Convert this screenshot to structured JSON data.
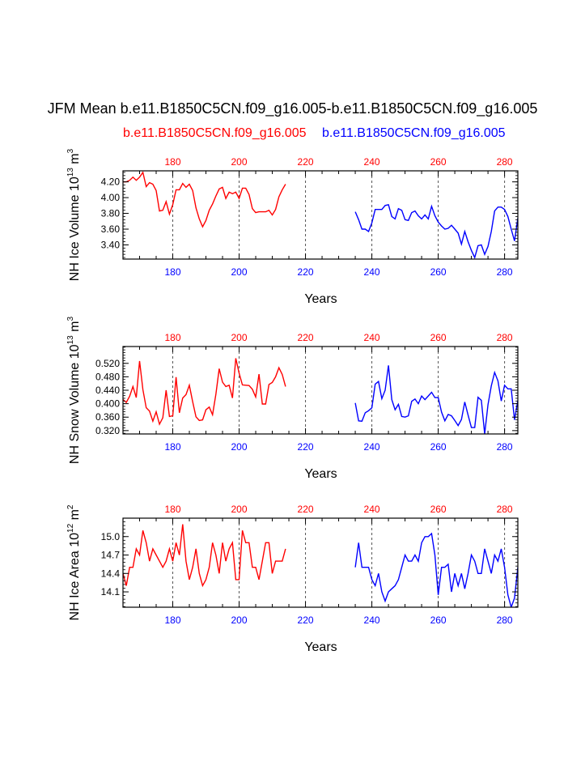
{
  "title": "JFM Mean b.e11.B1850C5CN.f09_g16.005-b.e11.B1850C5CN.f09_g16.005",
  "legend": {
    "red_case": "b.e11.B1850C5CN.f09_g16.005",
    "blue_case": "b.e11.B1850C5CN.f09_g16.005"
  },
  "colors": {
    "red": "#ff0000",
    "blue": "#0000ff",
    "grid": "#555555"
  },
  "chart_data": [
    {
      "type": "line",
      "id": "ice-volume",
      "ylabel_main": "NH Ice Volume 10",
      "ylabel_exp": "13",
      "ylabel_unit": " m",
      "ylabel_unit_exp": "3",
      "xlabel": "Years",
      "xlim": [
        165,
        284
      ],
      "ylim": [
        3.22,
        4.34
      ],
      "yticks": [
        3.4,
        3.6,
        3.8,
        4.0,
        4.2
      ],
      "ytick_labels": [
        "3.40",
        "3.60",
        "3.80",
        "4.00",
        "4.20"
      ],
      "top_xticks": [
        180,
        200,
        220,
        240,
        260,
        280
      ],
      "bottom_xticks": [
        180,
        200,
        220,
        240,
        260,
        280
      ],
      "grid_x": [
        180,
        200,
        220,
        240,
        260,
        280
      ],
      "series": [
        {
          "name": "b.e11.B1850C5CN.f09_g16.005",
          "color": "red",
          "x_start": 165,
          "values": [
            4.2,
            4.2,
            4.22,
            4.26,
            4.22,
            4.26,
            4.32,
            4.14,
            4.19,
            4.17,
            4.09,
            3.83,
            3.84,
            3.95,
            3.79,
            3.91,
            4.1,
            4.1,
            4.18,
            4.13,
            4.17,
            4.09,
            3.87,
            3.73,
            3.63,
            3.71,
            3.84,
            3.92,
            4.02,
            4.11,
            4.13,
            3.99,
            4.07,
            4.05,
            4.07,
            3.99,
            4.12,
            4.12,
            4.04,
            3.86,
            3.81,
            3.82,
            3.82,
            3.82,
            3.84,
            3.78,
            3.85,
            4.01,
            4.1,
            4.17
          ]
        },
        {
          "name": "b.e11.B1850C5CN.f09_g16.005",
          "color": "blue",
          "x_start": 235,
          "values": [
            3.82,
            3.72,
            3.6,
            3.6,
            3.57,
            3.68,
            3.85,
            3.85,
            3.85,
            3.9,
            3.91,
            3.76,
            3.73,
            3.86,
            3.84,
            3.72,
            3.71,
            3.81,
            3.83,
            3.77,
            3.73,
            3.78,
            3.73,
            3.89,
            3.77,
            3.69,
            3.64,
            3.6,
            3.61,
            3.65,
            3.6,
            3.55,
            3.41,
            3.57,
            3.44,
            3.33,
            3.24,
            3.39,
            3.4,
            3.28,
            3.38,
            3.57,
            3.83,
            3.88,
            3.88,
            3.85,
            3.76,
            3.6,
            3.45,
            3.74
          ]
        }
      ]
    },
    {
      "type": "line",
      "id": "snow-volume",
      "ylabel_main": "NH Snow Volume 10",
      "ylabel_exp": "13",
      "ylabel_unit": " m",
      "ylabel_unit_exp": "3",
      "xlabel": "Years",
      "xlim": [
        165,
        284
      ],
      "ylim": [
        0.31,
        0.57
      ],
      "yticks": [
        0.32,
        0.36,
        0.4,
        0.44,
        0.48,
        0.52
      ],
      "ytick_labels": [
        "0.320",
        "0.360",
        "0.400",
        "0.440",
        "0.480",
        "0.520"
      ],
      "top_xticks": [
        180,
        200,
        220,
        240,
        260,
        280
      ],
      "bottom_xticks": [
        180,
        200,
        220,
        240,
        260,
        280
      ],
      "grid_x": [
        180,
        200,
        220,
        240,
        260,
        280
      ],
      "series": [
        {
          "name": "b.e11.B1850C5CN.f09_g16.005",
          "color": "red",
          "x_start": 165,
          "values": [
            0.412,
            0.404,
            0.422,
            0.451,
            0.418,
            0.527,
            0.442,
            0.388,
            0.378,
            0.348,
            0.376,
            0.339,
            0.358,
            0.44,
            0.362,
            0.364,
            0.479,
            0.373,
            0.417,
            0.427,
            0.455,
            0.406,
            0.361,
            0.35,
            0.352,
            0.382,
            0.39,
            0.367,
            0.428,
            0.504,
            0.464,
            0.451,
            0.455,
            0.417,
            0.535,
            0.491,
            0.456,
            0.455,
            0.454,
            0.443,
            0.42,
            0.488,
            0.399,
            0.399,
            0.457,
            0.463,
            0.48,
            0.507,
            0.487,
            0.451
          ]
        },
        {
          "name": "b.e11.B1850C5CN.f09_g16.005",
          "color": "blue",
          "x_start": 235,
          "values": [
            0.402,
            0.349,
            0.348,
            0.373,
            0.379,
            0.388,
            0.458,
            0.466,
            0.415,
            0.44,
            0.514,
            0.412,
            0.382,
            0.398,
            0.362,
            0.36,
            0.364,
            0.407,
            0.414,
            0.4,
            0.423,
            0.412,
            0.423,
            0.434,
            0.418,
            0.418,
            0.375,
            0.349,
            0.368,
            0.364,
            0.35,
            0.335,
            0.353,
            0.405,
            0.366,
            0.329,
            0.329,
            0.419,
            0.41,
            0.31,
            0.397,
            0.453,
            0.493,
            0.468,
            0.408,
            0.455,
            0.444,
            0.444,
            0.352,
            0.41
          ]
        }
      ]
    },
    {
      "type": "line",
      "id": "ice-area",
      "ylabel_main": "NH Ice Area 10",
      "ylabel_exp": "12",
      "ylabel_unit": " m",
      "ylabel_unit_exp": "2",
      "xlabel": "Years",
      "xlim": [
        165,
        284
      ],
      "ylim": [
        13.85,
        15.3
      ],
      "yticks": [
        14.1,
        14.4,
        14.7,
        15.0
      ],
      "ytick_labels": [
        "14.1",
        "14.4",
        "14.7",
        "15.0"
      ],
      "top_xticks": [
        180,
        200,
        220,
        240,
        260,
        280
      ],
      "bottom_xticks": [
        180,
        200,
        220,
        240,
        260,
        280
      ],
      "grid_x": [
        180,
        200,
        220,
        240,
        260,
        280
      ],
      "series": [
        {
          "name": "b.e11.B1850C5CN.f09_g16.005",
          "color": "red",
          "x_start": 165,
          "values": [
            14.4,
            14.2,
            14.5,
            14.5,
            14.8,
            14.7,
            15.1,
            14.9,
            14.6,
            14.8,
            14.7,
            14.6,
            14.5,
            14.6,
            14.8,
            14.6,
            14.9,
            14.7,
            15.2,
            14.6,
            14.3,
            14.5,
            14.8,
            14.4,
            14.2,
            14.3,
            14.5,
            14.9,
            14.7,
            14.4,
            14.9,
            14.6,
            14.8,
            14.9,
            14.3,
            14.3,
            15.1,
            14.9,
            14.9,
            14.5,
            14.5,
            14.3,
            14.6,
            14.9,
            14.9,
            14.4,
            14.6,
            14.6,
            14.6,
            14.8
          ]
        },
        {
          "name": "b.e11.B1850C5CN.f09_g16.005",
          "color": "blue",
          "x_start": 235,
          "values": [
            14.5,
            14.9,
            14.5,
            14.5,
            14.5,
            14.3,
            14.2,
            14.4,
            14.1,
            13.95,
            14.1,
            14.15,
            14.2,
            14.3,
            14.5,
            14.7,
            14.6,
            14.6,
            14.7,
            14.6,
            14.9,
            15.0,
            15.0,
            15.05,
            14.7,
            14.05,
            14.5,
            14.5,
            14.55,
            14.1,
            14.4,
            14.2,
            14.4,
            14.15,
            14.4,
            14.7,
            14.6,
            14.4,
            14.4,
            14.8,
            14.6,
            14.4,
            14.7,
            14.6,
            14.8,
            14.5,
            14.05,
            13.85,
            14.0,
            14.5
          ]
        }
      ]
    }
  ]
}
